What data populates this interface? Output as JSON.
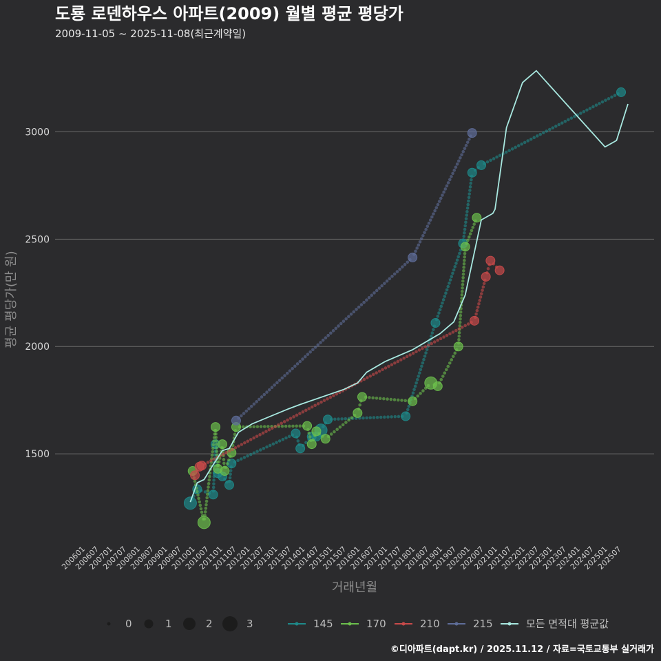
{
  "chart_data": {
    "type": "scatter",
    "title": "도룡 로덴하우스 아파트(2009) 월별 평균 평당가",
    "subtitle": "2009-11-05 ~ 2025-11-08(최근계약일)",
    "xlabel": "거래년월",
    "ylabel": "평균 평당가(만 원)",
    "caption": "©디아파트(dapt.kr) / 2025.11.12 / 자료=국토교통부 실거래가",
    "x_range": [
      "200601",
      "202511"
    ],
    "ylim": [
      1080,
      3390
    ],
    "yticks": [
      1500,
      2000,
      2500,
      3000
    ],
    "xticks": [
      "200601",
      "200607",
      "200701",
      "200707",
      "200801",
      "200807",
      "200901",
      "200907",
      "201001",
      "201007",
      "201101",
      "201107",
      "201201",
      "201207",
      "201301",
      "201307",
      "201401",
      "201407",
      "201501",
      "201507",
      "201601",
      "201607",
      "201701",
      "201707",
      "201801",
      "201807",
      "201901",
      "201907",
      "202001",
      "202007",
      "202101",
      "202107",
      "202201",
      "202207",
      "202301",
      "202307",
      "202401",
      "202407",
      "202501",
      "202507"
    ],
    "size_legend": {
      "values": [
        "0",
        "1",
        "2",
        "3"
      ]
    },
    "series": [
      {
        "name": "145",
        "color": "#1e8a8a",
        "points": [
          [
            "200912",
            1270,
            2
          ],
          [
            "201003",
            1335,
            1
          ],
          [
            "201010",
            1310,
            1
          ],
          [
            "201011",
            1545,
            1
          ],
          [
            "201012",
            1410,
            1
          ],
          [
            "201102",
            1395,
            1
          ],
          [
            "201105",
            1355,
            1
          ],
          [
            "201106",
            1455,
            1
          ],
          [
            "201310",
            1595,
            1
          ],
          [
            "201312",
            1525,
            1
          ],
          [
            "201405",
            1580,
            1
          ],
          [
            "201407",
            1580,
            1
          ],
          [
            "201409",
            1610,
            2
          ],
          [
            "201412",
            1660,
            1
          ],
          [
            "201710",
            1675,
            1
          ],
          [
            "201811",
            2110,
            1
          ],
          [
            "201911",
            2480,
            1
          ],
          [
            "202003",
            2810,
            1
          ],
          [
            "202007",
            2845,
            1
          ],
          [
            "202508",
            3185,
            1
          ]
        ]
      },
      {
        "name": "170",
        "color": "#6cbf4c",
        "points": [
          [
            "201001",
            1420,
            1
          ],
          [
            "201006",
            1180,
            2
          ],
          [
            "201011",
            1625,
            1
          ],
          [
            "201012",
            1430,
            1
          ],
          [
            "201102",
            1545,
            1
          ],
          [
            "201103",
            1420,
            1
          ],
          [
            "201106",
            1505,
            1
          ],
          [
            "201108",
            1625,
            1
          ],
          [
            "201403",
            1630,
            1
          ],
          [
            "201405",
            1545,
            1
          ],
          [
            "201407",
            1605,
            1
          ],
          [
            "201411",
            1570,
            1
          ],
          [
            "201601",
            1690,
            1
          ],
          [
            "201603",
            1765,
            1
          ],
          [
            "201801",
            1745,
            1
          ],
          [
            "201809",
            1830,
            2
          ],
          [
            "201812",
            1815,
            1
          ],
          [
            "201909",
            2000,
            1
          ],
          [
            "201912",
            2465,
            1
          ],
          [
            "202005",
            2600,
            1
          ]
        ]
      },
      {
        "name": "210",
        "color": "#c94a4a",
        "points": [
          [
            "201002",
            1400,
            1
          ],
          [
            "201004",
            1440,
            1
          ],
          [
            "201005",
            1445,
            1
          ],
          [
            "202004",
            2120,
            1
          ],
          [
            "202011",
            2400,
            1
          ],
          [
            "202009",
            2325,
            1
          ],
          [
            "202103",
            2355,
            1
          ]
        ]
      },
      {
        "name": "215",
        "color": "#5f6e9a",
        "points": [
          [
            "201108",
            1655,
            1
          ],
          [
            "201801",
            2415,
            1
          ],
          [
            "202003",
            2995,
            1
          ]
        ]
      }
    ],
    "average_line": {
      "name": "모든 면적대 평균값",
      "color": "#a8e8e0",
      "points": [
        [
          "200912",
          1275
        ],
        [
          "201003",
          1365
        ],
        [
          "201006",
          1380
        ],
        [
          "201010",
          1450
        ],
        [
          "201102",
          1515
        ],
        [
          "201105",
          1525
        ],
        [
          "201109",
          1600
        ],
        [
          "201203",
          1640
        ],
        [
          "201307",
          1710
        ],
        [
          "201312",
          1730
        ],
        [
          "201507",
          1800
        ],
        [
          "201601",
          1830
        ],
        [
          "201605",
          1880
        ],
        [
          "201701",
          1930
        ],
        [
          "201801",
          1985
        ],
        [
          "201901",
          2060
        ],
        [
          "201907",
          2115
        ],
        [
          "201912",
          2240
        ],
        [
          "202007",
          2590
        ],
        [
          "202012",
          2620
        ],
        [
          "202101",
          2640
        ],
        [
          "202106",
          3020
        ],
        [
          "202201",
          3230
        ],
        [
          "202207",
          3285
        ],
        [
          "202501",
          2930
        ],
        [
          "202506",
          2960
        ],
        [
          "202511",
          3130
        ]
      ]
    }
  }
}
